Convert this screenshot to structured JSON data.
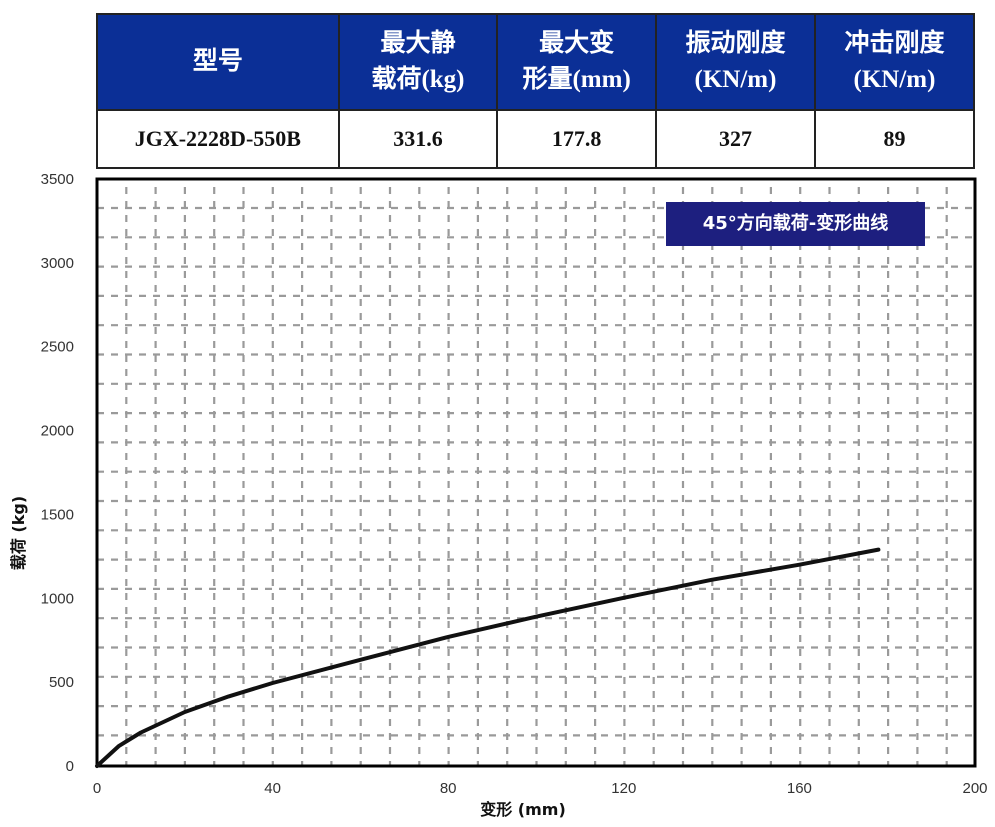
{
  "spec_table": {
    "headers": [
      {
        "line1": "型号",
        "line2": ""
      },
      {
        "line1": "最大静",
        "line2": "载荷(kg)"
      },
      {
        "line1": "最大变",
        "line2": "形量(mm)"
      },
      {
        "line1": "振动刚度",
        "line2": "(KN/m)"
      },
      {
        "line1": "冲击刚度",
        "line2": "(KN/m)"
      }
    ],
    "row": [
      "JGX-2228D-550B",
      "331.6",
      "177.8",
      "327",
      "89"
    ],
    "header_color": "#0b2f96"
  },
  "chart": {
    "legend_label": "45°方向载荷-变形曲线",
    "legend_color": "#1d1f7f",
    "x_axis_title": "变形 (mm)",
    "y_axis_title": "载荷 (kg)",
    "x_ticks": [
      "0",
      "40",
      "80",
      "120",
      "160",
      "200"
    ],
    "y_ticks": [
      "0",
      "500",
      "1000",
      "1500",
      "2000",
      "2500",
      "3000",
      "3500"
    ]
  },
  "chart_data": {
    "type": "line",
    "title": "45°方向载荷-变形曲线",
    "xlabel": "变形 (mm)",
    "ylabel": "载荷 (kg)",
    "xlim": [
      0,
      200
    ],
    "ylim": [
      0,
      3500
    ],
    "grid": true,
    "legend_position": "top-right",
    "series": [
      {
        "name": "45°方向载荷-变形曲线",
        "x": [
          0,
          5,
          10,
          20,
          30,
          40,
          60,
          80,
          100,
          120,
          140,
          160,
          178
        ],
        "y": [
          0,
          120,
          200,
          322,
          415,
          495,
          633,
          770,
          890,
          1003,
          1110,
          1200,
          1290
        ]
      }
    ]
  }
}
